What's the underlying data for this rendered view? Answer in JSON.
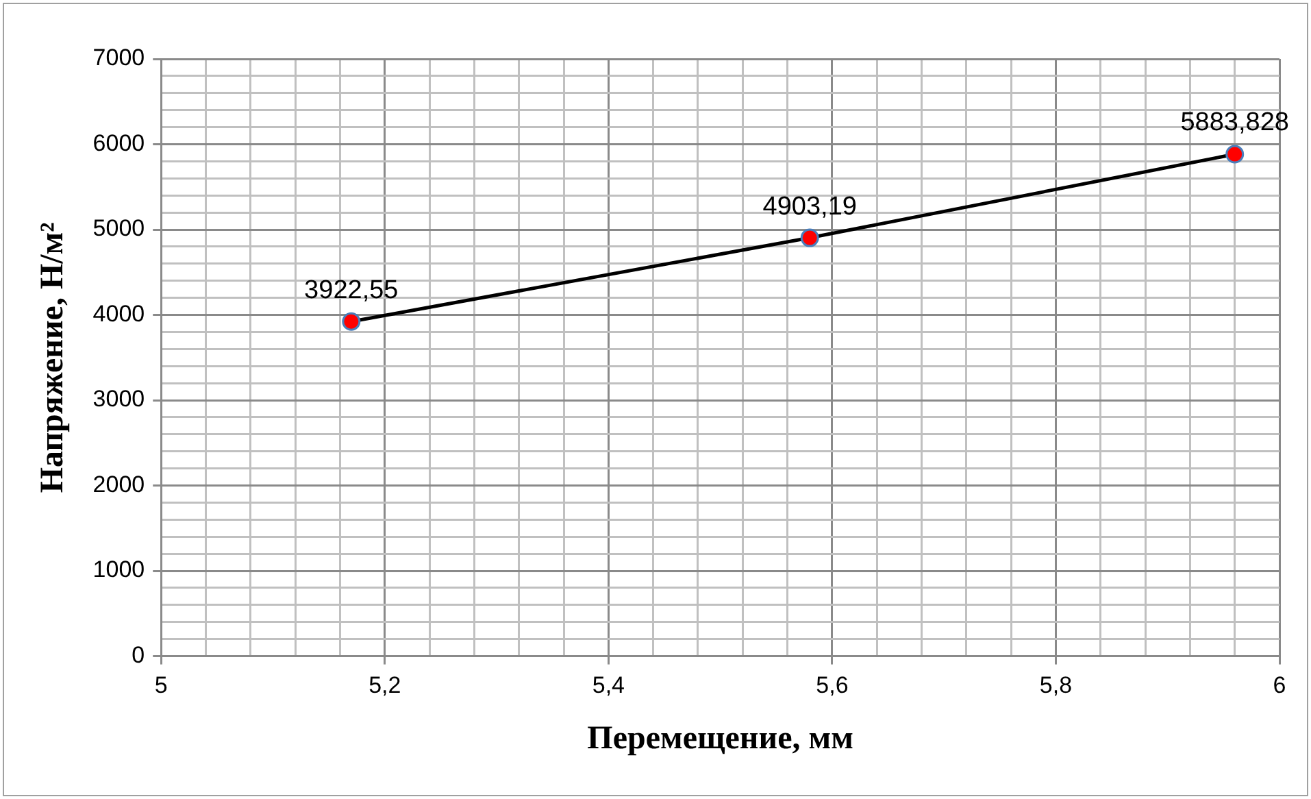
{
  "chart_data": {
    "type": "line",
    "xlabel": "Перемещение, мм",
    "ylabel": "Напряжение, Н/м²",
    "x": [
      5.17,
      5.58,
      5.96
    ],
    "series": [
      {
        "color": "#000000",
        "colors": [
          "#ff0000",
          "#ff0000",
          "#ff0000"
        ],
        "values": [
          3922.55,
          4903.19,
          5883.828
        ],
        "value_labels": [
          "3922,55",
          "4903,19",
          "5883,828"
        ]
      }
    ],
    "xlim": [
      5,
      6
    ],
    "xticks": [
      {
        "value": 5,
        "label": "5"
      },
      {
        "value": 5.04,
        "label": null
      },
      {
        "value": 5.08,
        "label": null
      },
      {
        "value": 5.12,
        "label": null
      },
      {
        "value": 5.16,
        "label": null
      },
      {
        "value": 5.2,
        "label": "5,2"
      },
      {
        "value": 5.24,
        "label": null
      },
      {
        "value": 5.28,
        "label": null
      },
      {
        "value": 5.32,
        "label": null
      },
      {
        "value": 5.36,
        "label": null
      },
      {
        "value": 5.4,
        "label": "5,4"
      },
      {
        "value": 5.44,
        "label": null
      },
      {
        "value": 5.48,
        "label": null
      },
      {
        "value": 5.52,
        "label": null
      },
      {
        "value": 5.56,
        "label": null
      },
      {
        "value": 5.6,
        "label": "5,6"
      },
      {
        "value": 5.64,
        "label": null
      },
      {
        "value": 5.68,
        "label": null
      },
      {
        "value": 5.72,
        "label": null
      },
      {
        "value": 5.76,
        "label": null
      },
      {
        "value": 5.8,
        "label": "5,8"
      },
      {
        "value": 5.84,
        "label": null
      },
      {
        "value": 5.88,
        "label": null
      },
      {
        "value": 5.92,
        "label": null
      },
      {
        "value": 5.96,
        "label": null
      },
      {
        "value": 6,
        "label": "6"
      }
    ],
    "ylim": [
      0,
      7000
    ],
    "yticks": [
      0,
      {
        "value": 200,
        "label": null
      },
      {
        "value": 400,
        "label": null
      },
      {
        "value": 600,
        "label": null
      },
      {
        "value": 800,
        "label": null
      },
      1000,
      {
        "value": 1200,
        "label": null
      },
      {
        "value": 1400,
        "label": null
      },
      {
        "value": 1600,
        "label": null
      },
      {
        "value": 1800,
        "label": null
      },
      2000,
      {
        "value": 2200,
        "label": null
      },
      {
        "value": 2400,
        "label": null
      },
      {
        "value": 2600,
        "label": null
      },
      {
        "value": 2800,
        "label": null
      },
      3000,
      {
        "value": 3200,
        "label": null
      },
      {
        "value": 3400,
        "label": null
      },
      {
        "value": 3600,
        "label": null
      },
      {
        "value": 3800,
        "label": null
      },
      4000,
      {
        "value": 4200,
        "label": null
      },
      {
        "value": 4400,
        "label": null
      },
      {
        "value": 4600,
        "label": null
      },
      {
        "value": 4800,
        "label": null
      },
      5000,
      {
        "value": 5200,
        "label": null
      },
      {
        "value": 5400,
        "label": null
      },
      {
        "value": 5600,
        "label": null
      },
      {
        "value": 5800,
        "label": null
      },
      6000,
      {
        "value": 6200,
        "label": null
      },
      {
        "value": 6400,
        "label": null
      },
      {
        "value": 6600,
        "label": null
      },
      {
        "value": 6800,
        "label": null
      },
      7000
    ],
    "grid": true,
    "marker": "circle",
    "line_style": "solid"
  }
}
